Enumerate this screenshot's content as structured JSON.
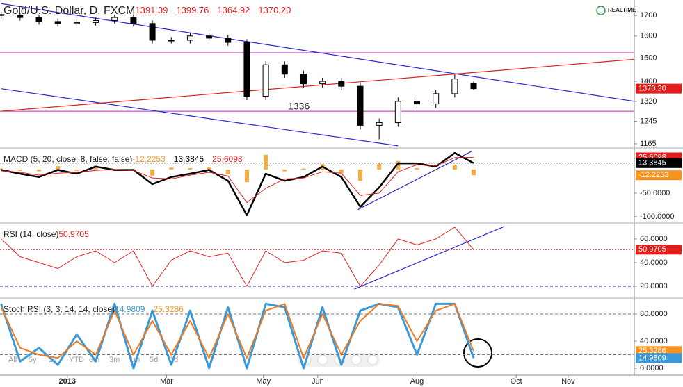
{
  "header": {
    "realtime": "REALTIME"
  },
  "toolbar": [
    "All",
    "5y",
    "1y",
    "YTD",
    "6m",
    "3m",
    "1m",
    "5d",
    "1d"
  ],
  "chart_data": [
    {
      "type": "candlestick",
      "title": "Gold/U.S. Dollar, D, FXCM",
      "log_scale": true,
      "legend": [
        {
          "value": 1391.39,
          "color": "#e31c1c"
        },
        {
          "value": 1399.76,
          "color": "#e31c1c"
        },
        {
          "value": 1364.92,
          "color": "#e31c1c"
        },
        {
          "value": 1370.2,
          "label": "1370.20",
          "color": "#e31c1c"
        }
      ],
      "up_color": "#ffffff",
      "down_color": "#000000",
      "open": [
        1705,
        1700,
        1690,
        1670,
        1660,
        1665,
        1675,
        1690,
        1660,
        1580,
        1580,
        1600,
        1590,
        1570,
        1340,
        1470,
        1430,
        1390,
        1400,
        1380,
        1230,
        1240,
        1320,
        1310,
        1350,
        1391.39
      ],
      "high": [
        1720,
        1715,
        1705,
        1685,
        1680,
        1690,
        1705,
        1705,
        1675,
        1595,
        1615,
        1615,
        1605,
        1585,
        1485,
        1485,
        1445,
        1415,
        1415,
        1395,
        1255,
        1335,
        1335,
        1365,
        1430,
        1399.76
      ],
      "low": [
        1685,
        1675,
        1655,
        1645,
        1645,
        1650,
        1660,
        1645,
        1565,
        1565,
        1565,
        1575,
        1555,
        1325,
        1325,
        1415,
        1375,
        1375,
        1365,
        1215,
        1180,
        1225,
        1295,
        1295,
        1335,
        1364.92
      ],
      "close": [
        1700,
        1690,
        1670,
        1660,
        1665,
        1675,
        1690,
        1660,
        1580,
        1580,
        1600,
        1590,
        1570,
        1340,
        1470,
        1430,
        1390,
        1400,
        1380,
        1230,
        1240,
        1320,
        1310,
        1350,
        1410,
        1370.2
      ],
      "ylim": [
        1153,
        1779
      ],
      "yticks": [
        1700,
        1600,
        1500,
        1400,
        1320,
        1245,
        1165
      ],
      "hlines": [
        {
          "value": 1523,
          "color": "#c020c0",
          "dash": "none"
        },
        {
          "value": 1282,
          "color": "#c020c0",
          "dash": "none"
        }
      ],
      "lines": [
        {
          "color": "#2a2ad0",
          "x": [
            -28,
            240
          ],
          "y": [
            1760,
            1320
          ]
        },
        {
          "color": "#2a2ad0",
          "x": [
            -28,
            140
          ],
          "y": [
            1370,
            1158
          ]
        },
        {
          "color": "#e02020",
          "x": [
            -28,
            240
          ],
          "y": [
            1282,
            1494
          ]
        }
      ],
      "annotations": [
        {
          "text": 1336,
          "x": 98
        }
      ],
      "tags": [
        {
          "value": 1370.2,
          "label": "1370.20",
          "color": "#e31c1c"
        }
      ]
    },
    {
      "type": "line",
      "title": "MACD (5, 20, close, 8, false, false)",
      "legend": [
        {
          "value": -12.2253,
          "color": "#f7931e"
        },
        {
          "value": 13.3845,
          "color": "#000000"
        },
        {
          "value": 25.6098,
          "color": "#e31c1c"
        }
      ],
      "series": [
        {
          "type": "bar",
          "color": "#f0a020",
          "values": [
            2,
            -3,
            -4,
            7,
            -3,
            8,
            -1,
            1,
            -13,
            4,
            3,
            5,
            -10,
            -27,
            31,
            -4,
            2,
            11,
            -8,
            -24,
            12,
            18,
            3,
            -2,
            10,
            -12.2253
          ]
        },
        {
          "type": "line",
          "color": "#000000",
          "width": 2.5,
          "values": [
            -1,
            -9,
            -16,
            -1,
            -9,
            6,
            -1,
            -1,
            -31,
            -16,
            -9,
            -1,
            -24,
            -97,
            -9,
            -24,
            -16,
            6,
            -16,
            -79,
            -38,
            13,
            13,
            6,
            35,
            13.3845
          ]
        },
        {
          "type": "line",
          "color": "#e02020",
          "width": 1,
          "values": [
            -3,
            -6,
            -12,
            -8,
            -6,
            -2,
            0,
            -2,
            -18,
            -20,
            -12,
            -6,
            -14,
            -70,
            -40,
            -20,
            -18,
            -5,
            -8,
            -55,
            -50,
            -5,
            10,
            8,
            25,
            25.6098
          ]
        }
      ],
      "ylim": [
        -112,
        44
      ],
      "yticks": [
        {
          "value": -50,
          "label": "-50.0000"
        },
        {
          "value": -100,
          "label": "-100.0000"
        }
      ],
      "hlines": [
        {
          "value": 13.3845,
          "color": "#333333",
          "dash": "2,2"
        }
      ],
      "lines": [
        {
          "color": "#2a2ad0",
          "x": [
            123,
            171
          ],
          "y": [
            -85,
            38
          ]
        }
      ],
      "tags": [
        {
          "value": 25.6098,
          "color": "#e31c1c"
        },
        {
          "value": 13.3845,
          "color": "#000000"
        },
        {
          "value": -12.2253,
          "color": "#f7931e"
        }
      ]
    },
    {
      "type": "line",
      "title": "RSI (14, close)",
      "legend": [
        {
          "value": 50.9705,
          "color": "#e31c1c"
        }
      ],
      "series": [
        {
          "type": "line",
          "color": "#e02020",
          "width": 1,
          "values": [
            60,
            45,
            40,
            35,
            45,
            50,
            40,
            50,
            20,
            42,
            50,
            45,
            48,
            20,
            50,
            40,
            42,
            50,
            48,
            20,
            38,
            60,
            55,
            60,
            70,
            50.9705
          ]
        }
      ],
      "ylim": [
        10.6,
        72.9
      ],
      "yticks": [
        {
          "value": 60,
          "label": "60.0000"
        },
        {
          "value": 40,
          "label": "40.0000"
        },
        {
          "value": 20,
          "label": "20.0000"
        }
      ],
      "hlines": [
        {
          "value": 50.9705,
          "color": "#e02020",
          "dash": "2,2"
        },
        {
          "value": 20,
          "color": "#2a2a90",
          "dash": "4,3"
        }
      ],
      "lines": [
        {
          "color": "#2a2ad0",
          "x": [
            121.5,
            185
          ],
          "y": [
            17.6,
            70.6
          ]
        }
      ],
      "tags": [
        {
          "value": 50.9705,
          "color": "#e31c1c"
        }
      ]
    },
    {
      "type": "line",
      "title": "Stoch RSI (3, 3, 14, 14, close)",
      "legend": [
        {
          "value": 14.9809,
          "color": "#3a9ad9"
        },
        {
          "value": 25.3286,
          "color": "#f7931e"
        }
      ],
      "x": [
        -28,
        -20,
        -12,
        -4,
        4,
        12,
        20,
        28,
        36,
        44,
        52,
        60,
        68,
        76,
        84,
        92,
        100,
        108,
        116,
        124,
        132,
        140,
        148,
        156,
        164,
        172
      ],
      "xlim": [
        -28.5,
        240
      ],
      "xticks": [
        {
          "value": 0,
          "label": "2013"
        },
        {
          "value": 42,
          "label": "Mar"
        },
        {
          "value": 83,
          "label": "May"
        },
        {
          "value": 106,
          "label": "Jun"
        },
        {
          "value": 148,
          "label": "Aug"
        },
        {
          "value": 190,
          "label": "Oct"
        },
        {
          "value": 212,
          "label": "Nov"
        }
      ],
      "series": [
        {
          "type": "line",
          "color": "#3a9ad9",
          "width": 3,
          "values": [
            95,
            10,
            30,
            5,
            50,
            10,
            95,
            0,
            85,
            5,
            85,
            0,
            90,
            0,
            95,
            90,
            0,
            90,
            5,
            85,
            95,
            90,
            20,
            95,
            95,
            14.9809
          ]
        },
        {
          "type": "line",
          "color": "#f07a20",
          "width": 2,
          "values": [
            90,
            30,
            20,
            15,
            40,
            20,
            85,
            20,
            70,
            20,
            70,
            15,
            80,
            15,
            85,
            95,
            15,
            80,
            20,
            70,
            95,
            92,
            40,
            85,
            95,
            25.3286
          ]
        }
      ],
      "ylim": [
        -10.3,
        102.6
      ],
      "yticks": [
        {
          "value": 80,
          "label": "80.0000"
        },
        {
          "value": 40,
          "label": "40.0000"
        },
        {
          "value": 0,
          "label": "0.0000"
        }
      ],
      "hlines": [
        {
          "value": 80,
          "color": "#777777",
          "dash": "4,3"
        },
        {
          "value": 20,
          "color": "#777777",
          "dash": "4,3"
        }
      ],
      "lines": [],
      "tags": [
        {
          "value": 25.3286,
          "color": "#f7931e"
        },
        {
          "value": 14.9809,
          "color": "#3a9ad9"
        }
      ]
    }
  ]
}
